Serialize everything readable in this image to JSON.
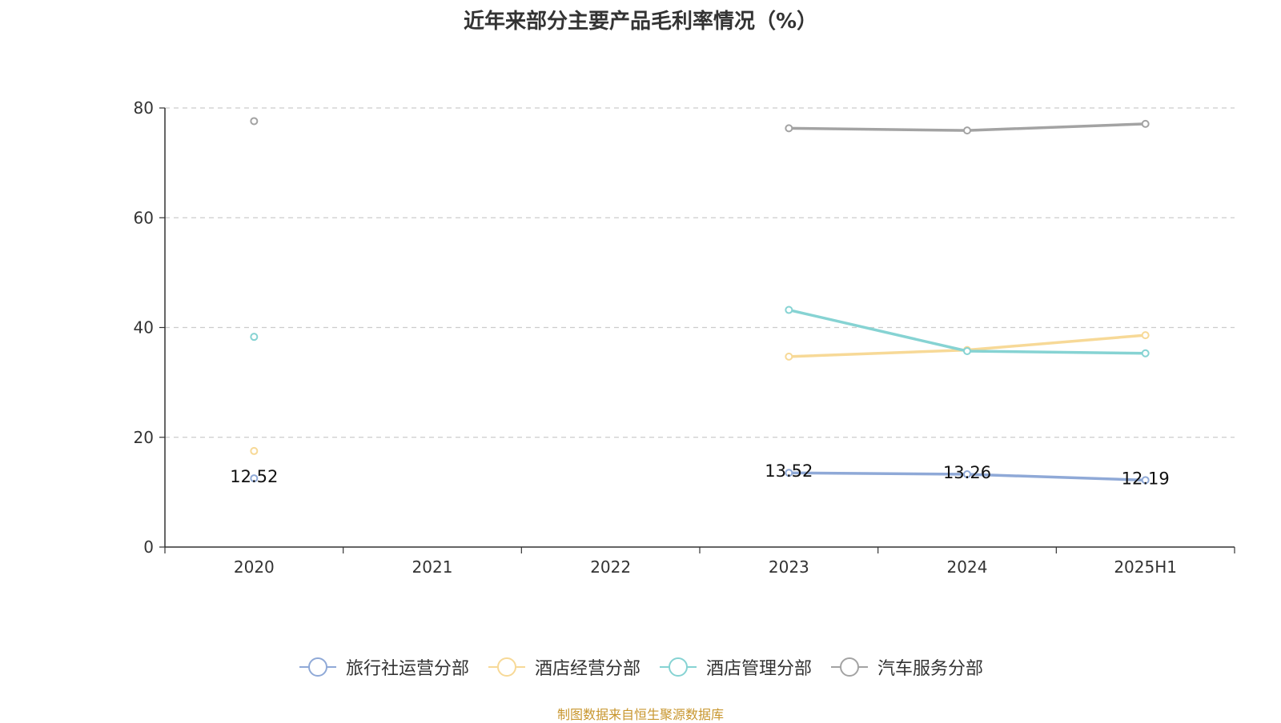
{
  "chart_data": {
    "type": "line",
    "title": "近年来部分主要产品毛利率情况（%）",
    "categories": [
      "2020",
      "2021",
      "2022",
      "2023",
      "2024",
      "2025H1"
    ],
    "ylim": [
      0,
      80
    ],
    "yticks": [
      0,
      20,
      40,
      60,
      80
    ],
    "grid": true,
    "legend_position": "bottom",
    "series": [
      {
        "name": "旅行社运营分部",
        "color": "#8fa9d7",
        "values": [
          12.52,
          null,
          null,
          13.52,
          13.26,
          12.19
        ],
        "show_labels": true
      },
      {
        "name": "酒店经营分部",
        "color": "#f7d997",
        "values": [
          17.5,
          null,
          null,
          34.7,
          35.9,
          38.6
        ],
        "show_labels": false
      },
      {
        "name": "酒店管理分部",
        "color": "#86d3d3",
        "values": [
          38.3,
          null,
          null,
          43.2,
          35.7,
          35.3
        ],
        "show_labels": false
      },
      {
        "name": "汽车服务分部",
        "color": "#a3a3a3",
        "values": [
          77.6,
          null,
          null,
          76.3,
          75.9,
          77.1
        ],
        "show_labels": false
      }
    ]
  },
  "source_note": "制图数据来自恒生聚源数据库"
}
